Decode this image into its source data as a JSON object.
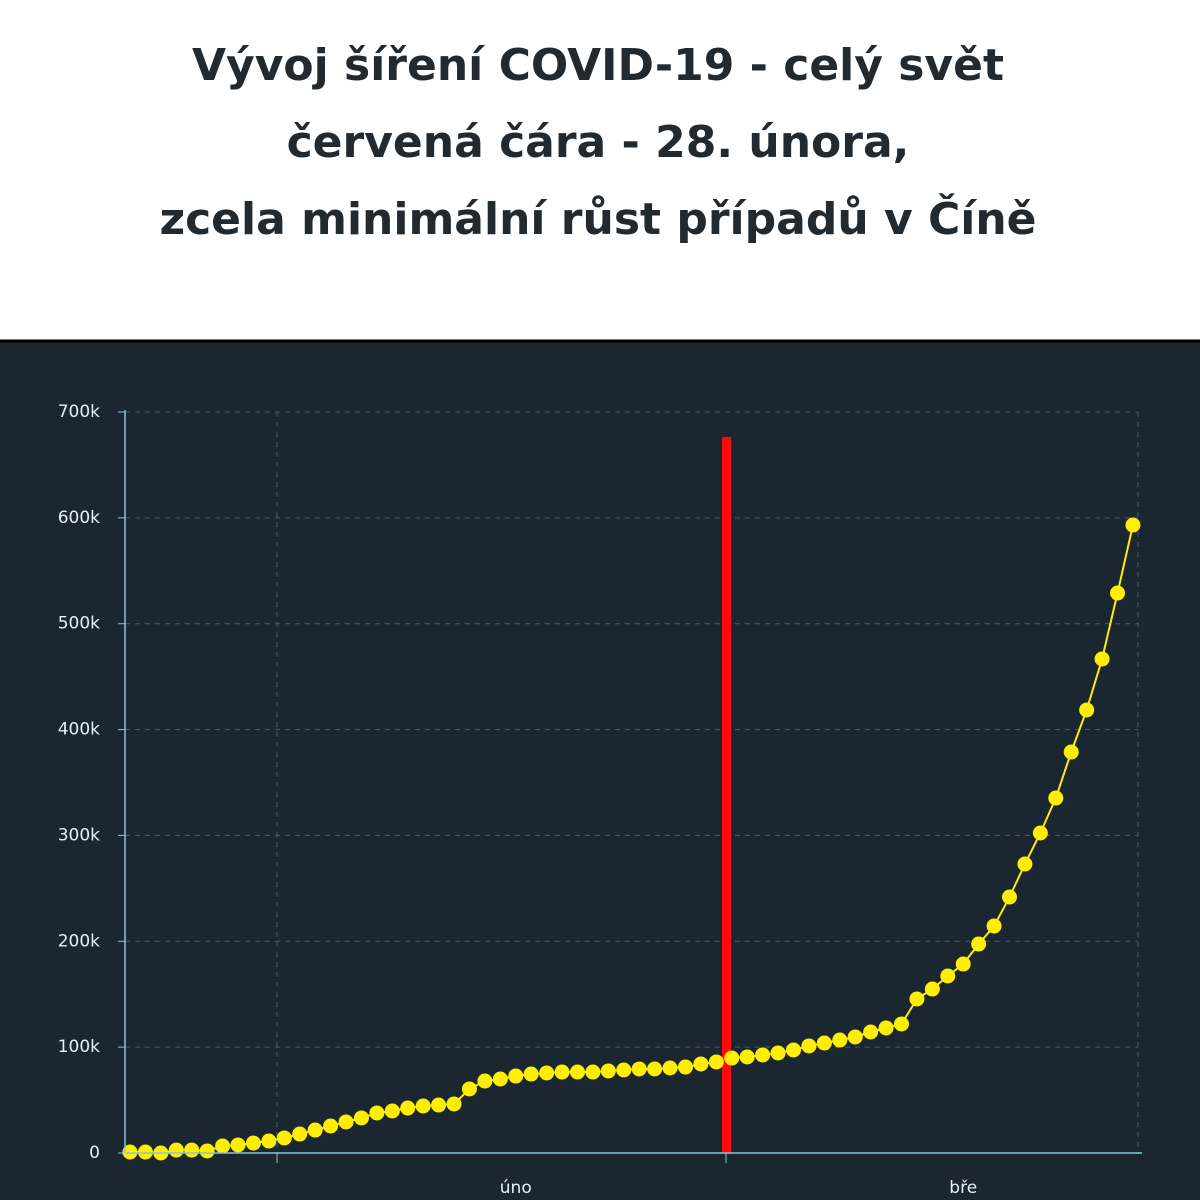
{
  "chart_data": {
    "type": "line",
    "title": [
      "Vývoj šíření COVID-19 - celý svět",
      "červená čára - 28. února,",
      "zcela minimální růst případů v Číně"
    ],
    "categories": [
      null,
      null,
      null,
      null,
      null,
      null,
      null,
      null,
      null,
      null,
      null,
      null,
      null,
      null,
      null,
      null,
      null,
      null,
      null,
      null,
      null,
      null,
      null,
      null,
      null,
      "úno",
      null,
      null,
      null,
      null,
      null,
      null,
      null,
      null,
      null,
      null,
      null,
      null,
      null,
      null,
      null,
      null,
      null,
      null,
      null,
      null,
      null,
      null,
      null,
      null,
      null,
      null,
      null,
      null,
      "bře",
      null,
      null,
      null,
      null,
      null,
      null,
      null,
      null,
      null,
      null,
      null
    ],
    "series": [
      {
        "color": "#ffee00",
        "values": [
          900,
          900,
          0,
          2800,
          2800,
          1900,
          6600,
          7600,
          9400,
          11300,
          14200,
          17900,
          21700,
          25500,
          29300,
          33100,
          37800,
          39700,
          42500,
          44400,
          45300,
          46300,
          60500,
          68000,
          69900,
          72700,
          74600,
          75600,
          76500,
          76500,
          76500,
          77500,
          78400,
          79400,
          79400,
          80300,
          81200,
          84100,
          86000,
          89700,
          90700,
          92600,
          94500,
          97300,
          101100,
          103900,
          106700,
          109600,
          114300,
          118100,
          121900,
          145500,
          154900,
          167200,
          178500,
          197400,
          214400,
          241800,
          273000,
          302300,
          335300,
          378800,
          418500,
          466700,
          529000,
          593200
        ]
      }
    ],
    "ylim": [
      0,
      700000
    ],
    "yticks": [
      0,
      {
        "value": 100000,
        "label": "100k"
      },
      {
        "value": 200000,
        "label": "200k"
      },
      {
        "value": 300000,
        "label": "300k"
      },
      {
        "value": 400000,
        "label": "400k"
      },
      {
        "value": 500000,
        "label": "500k"
      },
      {
        "value": 600000,
        "label": "600k"
      },
      {
        "value": 700000,
        "label": "700k"
      }
    ],
    "grid": true
  }
}
